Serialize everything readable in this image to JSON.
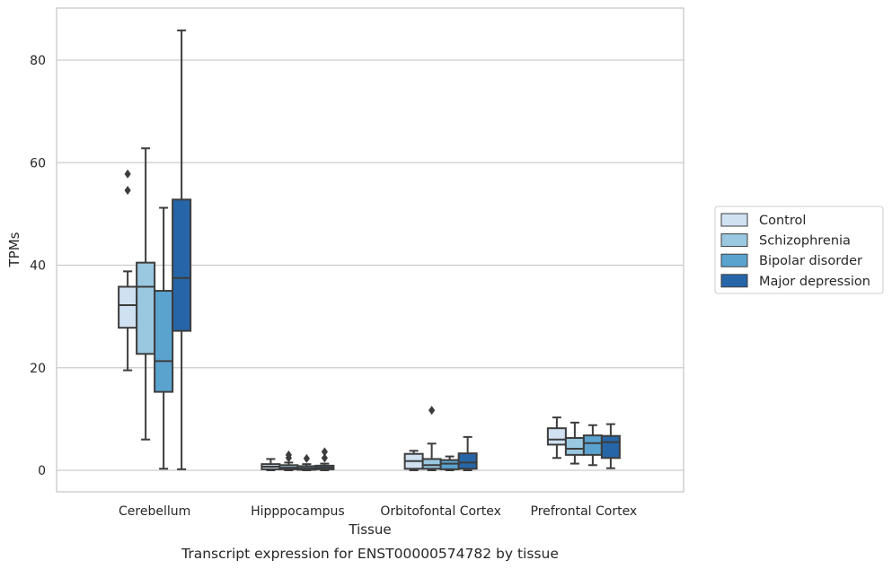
{
  "chart_data": {
    "type": "box",
    "caption": "Transcript expression for ENST00000574782 by tissue",
    "xlabel": "Tissue",
    "ylabel": "TPMs",
    "ylim": [
      -4,
      90
    ],
    "yticks": [
      0,
      20,
      40,
      60,
      80
    ],
    "grid": "horizontal",
    "legend_position": "right",
    "categories": [
      "Cerebellum",
      "Hipppocampus",
      "Orbitofontal Cortex",
      "Prefrontal Cortex"
    ],
    "series": [
      {
        "name": "Control",
        "color": "#d0e1f2",
        "boxes": [
          {
            "whislo": 19.5,
            "q1": 27.8,
            "med": 32.2,
            "q3": 35.8,
            "whishi": 38.8,
            "fliers": [
              54.6,
              57.8
            ]
          },
          {
            "whislo": 0.0,
            "q1": 0.2,
            "med": 0.7,
            "q3": 1.2,
            "whishi": 2.2,
            "fliers": []
          },
          {
            "whislo": 0.0,
            "q1": 0.3,
            "med": 1.8,
            "q3": 3.2,
            "whishi": 3.8,
            "fliers": []
          },
          {
            "whislo": 2.4,
            "q1": 5.0,
            "med": 6.0,
            "q3": 8.2,
            "whishi": 10.3,
            "fliers": []
          }
        ]
      },
      {
        "name": "Schizophrenia",
        "color": "#9ac8e0",
        "boxes": [
          {
            "whislo": 6.0,
            "q1": 22.7,
            "med": 35.8,
            "q3": 40.5,
            "whishi": 62.8,
            "fliers": []
          },
          {
            "whislo": 0.0,
            "q1": 0.2,
            "med": 0.5,
            "q3": 1.0,
            "whishi": 1.5,
            "fliers": [
              2.4,
              3.0
            ]
          },
          {
            "whislo": 0.0,
            "q1": 0.3,
            "med": 1.0,
            "q3": 2.2,
            "whishi": 5.2,
            "fliers": [
              11.7
            ]
          },
          {
            "whislo": 1.3,
            "q1": 3.0,
            "med": 4.2,
            "q3": 6.3,
            "whishi": 9.3,
            "fliers": []
          }
        ]
      },
      {
        "name": "Bipolar disorder",
        "color": "#5ba3cf",
        "boxes": [
          {
            "whislo": 0.3,
            "q1": 15.3,
            "med": 21.3,
            "q3": 35.0,
            "whishi": 51.2,
            "fliers": []
          },
          {
            "whislo": 0.0,
            "q1": 0.1,
            "med": 0.4,
            "q3": 0.8,
            "whishi": 1.2,
            "fliers": [
              2.3
            ]
          },
          {
            "whislo": 0.0,
            "q1": 0.2,
            "med": 1.3,
            "q3": 2.0,
            "whishi": 2.7,
            "fliers": []
          },
          {
            "whislo": 1.0,
            "q1": 3.0,
            "med": 5.3,
            "q3": 6.8,
            "whishi": 8.8,
            "fliers": []
          }
        ]
      },
      {
        "name": "Major depression",
        "color": "#2666a8",
        "boxes": [
          {
            "whislo": 0.2,
            "q1": 27.2,
            "med": 37.5,
            "q3": 52.8,
            "whishi": 85.8,
            "fliers": []
          },
          {
            "whislo": 0.0,
            "q1": 0.2,
            "med": 0.5,
            "q3": 0.9,
            "whishi": 1.3,
            "fliers": [
              2.4,
              3.6
            ]
          },
          {
            "whislo": 0.0,
            "q1": 0.3,
            "med": 1.5,
            "q3": 3.3,
            "whishi": 6.5,
            "fliers": []
          },
          {
            "whislo": 0.4,
            "q1": 2.4,
            "med": 5.5,
            "q3": 6.7,
            "whishi": 9.0,
            "fliers": []
          }
        ]
      }
    ]
  }
}
